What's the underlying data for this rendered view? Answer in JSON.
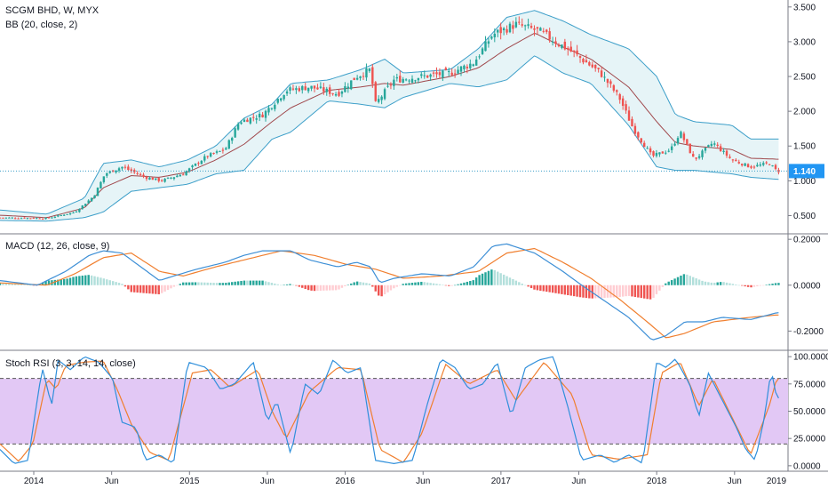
{
  "header": {
    "symbol_line": "SCGM BHD, W, MYX",
    "bb_label": "BB (20, close, 2)",
    "macd_label": "MACD (12, 26, close, 9)",
    "stoch_label": "Stoch RSI (3, 3, 14, 14, close)"
  },
  "price_tag": {
    "value": "1.140",
    "color": "#2196f3"
  },
  "colors": {
    "bull": "#26a69a",
    "bear": "#ef5350",
    "bb_band": "#3d9fc9",
    "bb_basis": "#a0484c",
    "bb_fill": "#e6f4f7",
    "macd_line": "#3d8fd6",
    "signal_line": "#f07f2f",
    "hist_up_strong": "#26a69a",
    "hist_up_weak": "#b2dfdb",
    "hist_down_strong": "#ef5350",
    "hist_down_weak": "#ffcdd2",
    "stoch_k": "#2f8fdb",
    "stoch_d": "#f07f2f",
    "stoch_band": "#e2c8f5"
  },
  "chart_data": [
    {
      "type": "candlestick",
      "title": "SCGM BHD, W, MYX",
      "overlay": "BB (20, close, 2)",
      "last_price": 1.14,
      "ylim": [
        0.25,
        3.6
      ],
      "y_ticks": [
        "0.500",
        "1.000",
        "1.500",
        "2.000",
        "2.500",
        "3.000",
        "3.500"
      ],
      "x_labels": [
        "2014",
        "Jun",
        "2015",
        "Jun",
        "2016",
        "Jun",
        "2017",
        "Jun",
        "2018",
        "Jun",
        "2019"
      ],
      "close_keypoints": [
        {
          "t": 0.0,
          "v": 0.47
        },
        {
          "t": 0.5,
          "v": 0.46
        },
        {
          "t": 0.8,
          "v": 0.55
        },
        {
          "t": 1.0,
          "v": 0.78
        },
        {
          "t": 1.12,
          "v": 1.1
        },
        {
          "t": 1.3,
          "v": 1.2
        },
        {
          "t": 1.55,
          "v": 1.05
        },
        {
          "t": 1.72,
          "v": 1.0
        },
        {
          "t": 1.95,
          "v": 1.1
        },
        {
          "t": 2.2,
          "v": 1.35
        },
        {
          "t": 2.4,
          "v": 1.45
        },
        {
          "t": 2.55,
          "v": 1.85
        },
        {
          "t": 2.8,
          "v": 1.95
        },
        {
          "t": 3.05,
          "v": 2.3
        },
        {
          "t": 3.3,
          "v": 2.35
        },
        {
          "t": 3.6,
          "v": 2.25
        },
        {
          "t": 3.8,
          "v": 2.5
        },
        {
          "t": 3.95,
          "v": 2.6
        },
        {
          "t": 4.0,
          "v": 2.1
        },
        {
          "t": 4.2,
          "v": 2.45
        },
        {
          "t": 4.5,
          "v": 2.5
        },
        {
          "t": 4.8,
          "v": 2.55
        },
        {
          "t": 5.05,
          "v": 2.7
        },
        {
          "t": 5.25,
          "v": 3.1
        },
        {
          "t": 5.5,
          "v": 3.25
        },
        {
          "t": 5.75,
          "v": 3.15
        },
        {
          "t": 6.1,
          "v": 2.85
        },
        {
          "t": 6.4,
          "v": 2.55
        },
        {
          "t": 6.6,
          "v": 2.2
        },
        {
          "t": 6.75,
          "v": 1.75
        },
        {
          "t": 6.95,
          "v": 1.35
        },
        {
          "t": 7.15,
          "v": 1.45
        },
        {
          "t": 7.25,
          "v": 1.7
        },
        {
          "t": 7.4,
          "v": 1.3
        },
        {
          "t": 7.6,
          "v": 1.55
        },
        {
          "t": 7.8,
          "v": 1.3
        },
        {
          "t": 8.0,
          "v": 1.2
        },
        {
          "t": 8.2,
          "v": 1.25
        },
        {
          "t": 8.28,
          "v": 1.14
        }
      ],
      "bb_upper_keypoints": [
        {
          "t": 0.0,
          "v": 0.58
        },
        {
          "t": 0.5,
          "v": 0.52
        },
        {
          "t": 0.9,
          "v": 0.75
        },
        {
          "t": 1.1,
          "v": 1.25
        },
        {
          "t": 1.4,
          "v": 1.3
        },
        {
          "t": 1.7,
          "v": 1.2
        },
        {
          "t": 2.0,
          "v": 1.3
        },
        {
          "t": 2.3,
          "v": 1.5
        },
        {
          "t": 2.6,
          "v": 1.9
        },
        {
          "t": 2.9,
          "v": 2.1
        },
        {
          "t": 3.1,
          "v": 2.4
        },
        {
          "t": 3.5,
          "v": 2.45
        },
        {
          "t": 3.85,
          "v": 2.6
        },
        {
          "t": 4.1,
          "v": 2.75
        },
        {
          "t": 4.3,
          "v": 2.55
        },
        {
          "t": 4.8,
          "v": 2.6
        },
        {
          "t": 5.1,
          "v": 2.9
        },
        {
          "t": 5.4,
          "v": 3.35
        },
        {
          "t": 5.7,
          "v": 3.45
        },
        {
          "t": 6.0,
          "v": 3.3
        },
        {
          "t": 6.3,
          "v": 3.1
        },
        {
          "t": 6.7,
          "v": 2.9
        },
        {
          "t": 7.0,
          "v": 2.5
        },
        {
          "t": 7.2,
          "v": 1.95
        },
        {
          "t": 7.4,
          "v": 1.85
        },
        {
          "t": 7.8,
          "v": 1.8
        },
        {
          "t": 8.0,
          "v": 1.6
        },
        {
          "t": 8.3,
          "v": 1.6
        }
      ],
      "bb_lower_keypoints": [
        {
          "t": 0.0,
          "v": 0.43
        },
        {
          "t": 0.5,
          "v": 0.42
        },
        {
          "t": 0.9,
          "v": 0.47
        },
        {
          "t": 1.1,
          "v": 0.55
        },
        {
          "t": 1.4,
          "v": 0.85
        },
        {
          "t": 1.7,
          "v": 0.9
        },
        {
          "t": 2.0,
          "v": 0.95
        },
        {
          "t": 2.3,
          "v": 1.1
        },
        {
          "t": 2.6,
          "v": 1.15
        },
        {
          "t": 2.9,
          "v": 1.6
        },
        {
          "t": 3.1,
          "v": 1.7
        },
        {
          "t": 3.5,
          "v": 2.15
        },
        {
          "t": 3.85,
          "v": 2.1
        },
        {
          "t": 4.1,
          "v": 2.05
        },
        {
          "t": 4.3,
          "v": 2.2
        },
        {
          "t": 4.8,
          "v": 2.4
        },
        {
          "t": 5.1,
          "v": 2.35
        },
        {
          "t": 5.4,
          "v": 2.45
        },
        {
          "t": 5.7,
          "v": 2.8
        },
        {
          "t": 6.0,
          "v": 2.55
        },
        {
          "t": 6.3,
          "v": 2.4
        },
        {
          "t": 6.7,
          "v": 1.8
        },
        {
          "t": 7.0,
          "v": 1.2
        },
        {
          "t": 7.2,
          "v": 1.15
        },
        {
          "t": 7.4,
          "v": 1.15
        },
        {
          "t": 7.8,
          "v": 1.1
        },
        {
          "t": 8.0,
          "v": 1.05
        },
        {
          "t": 8.3,
          "v": 1.02
        }
      ]
    },
    {
      "type": "line",
      "title": "MACD (12, 26, close, 9)",
      "ylim": [
        -0.28,
        0.22
      ],
      "y_ticks": [
        "0.2000",
        "0.0000",
        "-0.2000"
      ],
      "macd_keypoints": [
        {
          "t": 0.0,
          "v": 0.02
        },
        {
          "t": 0.4,
          "v": 0.0
        },
        {
          "t": 0.7,
          "v": 0.06
        },
        {
          "t": 0.95,
          "v": 0.13
        },
        {
          "t": 1.1,
          "v": 0.15
        },
        {
          "t": 1.3,
          "v": 0.14
        },
        {
          "t": 1.5,
          "v": 0.08
        },
        {
          "t": 1.7,
          "v": 0.02
        },
        {
          "t": 1.85,
          "v": 0.04
        },
        {
          "t": 2.1,
          "v": 0.07
        },
        {
          "t": 2.4,
          "v": 0.1
        },
        {
          "t": 2.6,
          "v": 0.13
        },
        {
          "t": 2.8,
          "v": 0.15
        },
        {
          "t": 3.1,
          "v": 0.15
        },
        {
          "t": 3.3,
          "v": 0.11
        },
        {
          "t": 3.6,
          "v": 0.08
        },
        {
          "t": 3.8,
          "v": 0.1
        },
        {
          "t": 3.95,
          "v": 0.08
        },
        {
          "t": 4.05,
          "v": 0.01
        },
        {
          "t": 4.2,
          "v": 0.03
        },
        {
          "t": 4.5,
          "v": 0.05
        },
        {
          "t": 4.8,
          "v": 0.04
        },
        {
          "t": 5.05,
          "v": 0.08
        },
        {
          "t": 5.25,
          "v": 0.17
        },
        {
          "t": 5.4,
          "v": 0.18
        },
        {
          "t": 5.7,
          "v": 0.14
        },
        {
          "t": 6.0,
          "v": 0.06
        },
        {
          "t": 6.2,
          "v": 0.0
        },
        {
          "t": 6.45,
          "v": -0.07
        },
        {
          "t": 6.7,
          "v": -0.14
        },
        {
          "t": 6.95,
          "v": -0.24
        },
        {
          "t": 7.1,
          "v": -0.22
        },
        {
          "t": 7.3,
          "v": -0.16
        },
        {
          "t": 7.5,
          "v": -0.16
        },
        {
          "t": 7.7,
          "v": -0.14
        },
        {
          "t": 8.0,
          "v": -0.15
        },
        {
          "t": 8.28,
          "v": -0.12
        }
      ],
      "signal_keypoints": [
        {
          "t": 0.0,
          "v": 0.01
        },
        {
          "t": 0.5,
          "v": 0.0
        },
        {
          "t": 0.8,
          "v": 0.05
        },
        {
          "t": 1.1,
          "v": 0.12
        },
        {
          "t": 1.4,
          "v": 0.14
        },
        {
          "t": 1.7,
          "v": 0.06
        },
        {
          "t": 1.95,
          "v": 0.04
        },
        {
          "t": 2.3,
          "v": 0.08
        },
        {
          "t": 2.7,
          "v": 0.12
        },
        {
          "t": 3.0,
          "v": 0.15
        },
        {
          "t": 3.35,
          "v": 0.13
        },
        {
          "t": 3.7,
          "v": 0.09
        },
        {
          "t": 4.0,
          "v": 0.07
        },
        {
          "t": 4.3,
          "v": 0.03
        },
        {
          "t": 4.7,
          "v": 0.04
        },
        {
          "t": 5.1,
          "v": 0.06
        },
        {
          "t": 5.4,
          "v": 0.14
        },
        {
          "t": 5.7,
          "v": 0.16
        },
        {
          "t": 6.0,
          "v": 0.1
        },
        {
          "t": 6.3,
          "v": 0.03
        },
        {
          "t": 6.6,
          "v": -0.06
        },
        {
          "t": 6.9,
          "v": -0.16
        },
        {
          "t": 7.1,
          "v": -0.23
        },
        {
          "t": 7.3,
          "v": -0.21
        },
        {
          "t": 7.6,
          "v": -0.16
        },
        {
          "t": 8.0,
          "v": -0.14
        },
        {
          "t": 8.28,
          "v": -0.13
        }
      ]
    },
    {
      "type": "line",
      "title": "Stoch RSI (3, 3, 14, 14, close)",
      "ylim": [
        -5,
        105
      ],
      "y_ticks": [
        "100.0000",
        "75.0000",
        "50.0000",
        "25.0000",
        "0.0000"
      ],
      "upper_band": 80,
      "lower_band": 20,
      "k_keypoints": [
        {
          "t": 0.0,
          "v": 15
        },
        {
          "t": 0.15,
          "v": 2
        },
        {
          "t": 0.3,
          "v": 5
        },
        {
          "t": 0.45,
          "v": 90
        },
        {
          "t": 0.55,
          "v": 55
        },
        {
          "t": 0.62,
          "v": 97
        },
        {
          "t": 0.75,
          "v": 88
        },
        {
          "t": 0.9,
          "v": 100
        },
        {
          "t": 1.05,
          "v": 95
        },
        {
          "t": 1.2,
          "v": 80
        },
        {
          "t": 1.3,
          "v": 40
        },
        {
          "t": 1.45,
          "v": 35
        },
        {
          "t": 1.55,
          "v": 5
        },
        {
          "t": 1.7,
          "v": 10
        },
        {
          "t": 1.85,
          "v": 2
        },
        {
          "t": 2.0,
          "v": 95
        },
        {
          "t": 2.2,
          "v": 90
        },
        {
          "t": 2.35,
          "v": 70
        },
        {
          "t": 2.5,
          "v": 75
        },
        {
          "t": 2.7,
          "v": 95
        },
        {
          "t": 2.85,
          "v": 40
        },
        {
          "t": 2.95,
          "v": 60
        },
        {
          "t": 3.1,
          "v": 10
        },
        {
          "t": 3.25,
          "v": 75
        },
        {
          "t": 3.4,
          "v": 65
        },
        {
          "t": 3.55,
          "v": 97
        },
        {
          "t": 3.7,
          "v": 85
        },
        {
          "t": 3.85,
          "v": 90
        },
        {
          "t": 4.0,
          "v": 5
        },
        {
          "t": 4.2,
          "v": 2
        },
        {
          "t": 4.4,
          "v": 5
        },
        {
          "t": 4.55,
          "v": 55
        },
        {
          "t": 4.7,
          "v": 98
        },
        {
          "t": 4.85,
          "v": 90
        },
        {
          "t": 5.0,
          "v": 70
        },
        {
          "t": 5.15,
          "v": 75
        },
        {
          "t": 5.3,
          "v": 95
        },
        {
          "t": 5.45,
          "v": 45
        },
        {
          "t": 5.6,
          "v": 90
        },
        {
          "t": 5.75,
          "v": 97
        },
        {
          "t": 5.9,
          "v": 100
        },
        {
          "t": 6.05,
          "v": 55
        },
        {
          "t": 6.2,
          "v": 5
        },
        {
          "t": 6.4,
          "v": 10
        },
        {
          "t": 6.55,
          "v": 3
        },
        {
          "t": 6.7,
          "v": 10
        },
        {
          "t": 6.85,
          "v": 2
        },
        {
          "t": 7.0,
          "v": 95
        },
        {
          "t": 7.1,
          "v": 90
        },
        {
          "t": 7.2,
          "v": 98
        },
        {
          "t": 7.35,
          "v": 75
        },
        {
          "t": 7.45,
          "v": 45
        },
        {
          "t": 7.55,
          "v": 85
        },
        {
          "t": 7.7,
          "v": 60
        },
        {
          "t": 7.85,
          "v": 35
        },
        {
          "t": 7.95,
          "v": 15
        },
        {
          "t": 8.05,
          "v": 5
        },
        {
          "t": 8.15,
          "v": 45
        },
        {
          "t": 8.22,
          "v": 88
        },
        {
          "t": 8.28,
          "v": 62
        }
      ],
      "d_keypoints": [
        {
          "t": 0.0,
          "v": 20
        },
        {
          "t": 0.2,
          "v": 4
        },
        {
          "t": 0.35,
          "v": 20
        },
        {
          "t": 0.5,
          "v": 80
        },
        {
          "t": 0.6,
          "v": 70
        },
        {
          "t": 0.7,
          "v": 92
        },
        {
          "t": 0.9,
          "v": 95
        },
        {
          "t": 1.1,
          "v": 96
        },
        {
          "t": 1.25,
          "v": 70
        },
        {
          "t": 1.4,
          "v": 38
        },
        {
          "t": 1.6,
          "v": 12
        },
        {
          "t": 1.8,
          "v": 5
        },
        {
          "t": 2.05,
          "v": 85
        },
        {
          "t": 2.25,
          "v": 88
        },
        {
          "t": 2.45,
          "v": 72
        },
        {
          "t": 2.75,
          "v": 88
        },
        {
          "t": 2.9,
          "v": 50
        },
        {
          "t": 3.05,
          "v": 25
        },
        {
          "t": 3.3,
          "v": 68
        },
        {
          "t": 3.6,
          "v": 90
        },
        {
          "t": 3.85,
          "v": 88
        },
        {
          "t": 4.05,
          "v": 15
        },
        {
          "t": 4.3,
          "v": 3
        },
        {
          "t": 4.5,
          "v": 30
        },
        {
          "t": 4.75,
          "v": 93
        },
        {
          "t": 5.0,
          "v": 75
        },
        {
          "t": 5.3,
          "v": 88
        },
        {
          "t": 5.5,
          "v": 60
        },
        {
          "t": 5.8,
          "v": 95
        },
        {
          "t": 6.1,
          "v": 65
        },
        {
          "t": 6.3,
          "v": 10
        },
        {
          "t": 6.6,
          "v": 6
        },
        {
          "t": 6.9,
          "v": 10
        },
        {
          "t": 7.05,
          "v": 85
        },
        {
          "t": 7.25,
          "v": 95
        },
        {
          "t": 7.45,
          "v": 55
        },
        {
          "t": 7.6,
          "v": 80
        },
        {
          "t": 7.8,
          "v": 45
        },
        {
          "t": 8.0,
          "v": 10
        },
        {
          "t": 8.2,
          "v": 55
        },
        {
          "t": 8.28,
          "v": 80
        }
      ]
    }
  ]
}
